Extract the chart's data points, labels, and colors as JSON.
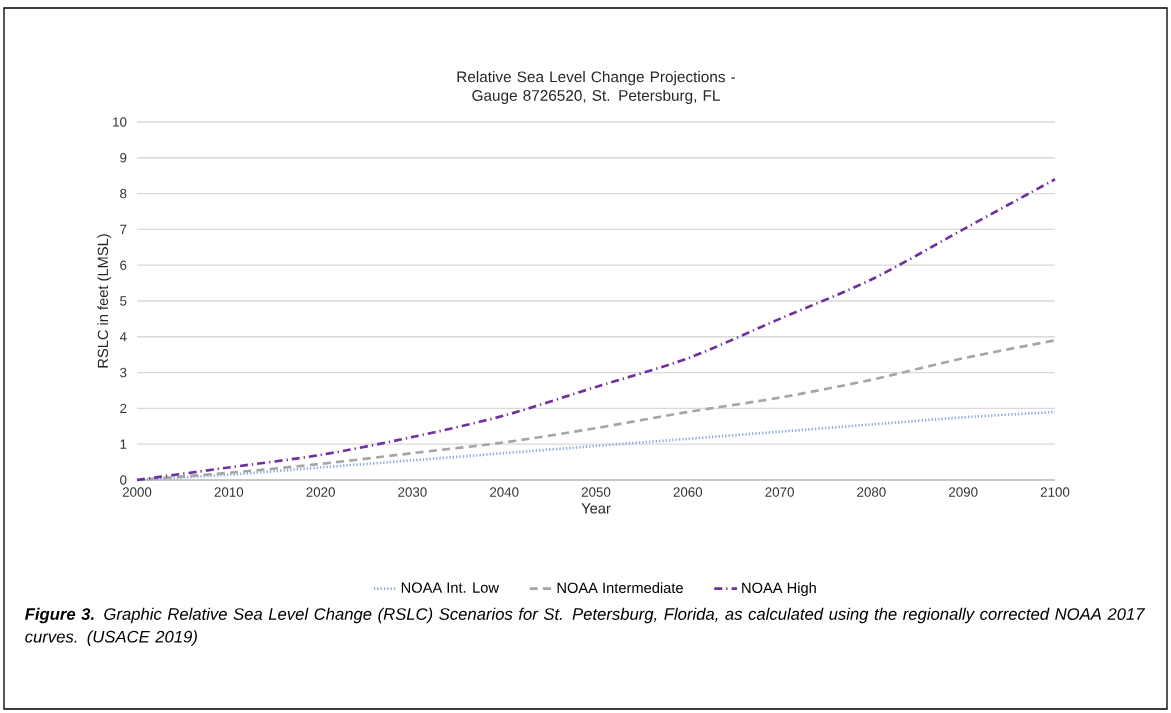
{
  "chart_data": {
    "type": "line",
    "title": "Relative Sea Level Change Projections -\nGauge 8726520, St. Petersburg, FL",
    "xlabel": "Year",
    "ylabel": "RSLC in feet (LMSL)",
    "x": [
      2000,
      2010,
      2020,
      2030,
      2040,
      2050,
      2060,
      2070,
      2080,
      2090,
      2100
    ],
    "series": [
      {
        "name": "NOAA Int. Low",
        "color": "#8faadc",
        "line_style": "dotted",
        "values": [
          0,
          0.15,
          0.35,
          0.55,
          0.75,
          0.95,
          1.15,
          1.35,
          1.55,
          1.75,
          1.9
        ]
      },
      {
        "name": "NOAA Intermediate",
        "color": "#a6a6a6",
        "line_style": "dashed",
        "values": [
          0,
          0.2,
          0.45,
          0.75,
          1.05,
          1.45,
          1.9,
          2.3,
          2.8,
          3.4,
          3.9
        ]
      },
      {
        "name": "NOAA High",
        "color": "#7030a0",
        "line_style": "dashdot",
        "values": [
          0,
          0.35,
          0.7,
          1.2,
          1.8,
          2.6,
          3.4,
          4.5,
          5.6,
          7.0,
          8.4
        ]
      }
    ],
    "xlim": [
      2000,
      2100
    ],
    "xticks": [
      2000,
      2010,
      2020,
      2030,
      2040,
      2050,
      2060,
      2070,
      2080,
      2090,
      2100
    ],
    "ylim": [
      0,
      10
    ],
    "yticks": [
      0,
      1,
      2,
      3,
      4,
      5,
      6,
      7,
      8,
      9,
      10
    ],
    "grid": "y",
    "legend": "bottom",
    "annotations": [
      "**Figure 3.** Graphic Relative Sea Level Change (RSLC) Scenarios for St. Petersburg, Florida, as calculated using the regionally corrected NOAA 2017 curves. (USACE 2019)"
    ]
  }
}
